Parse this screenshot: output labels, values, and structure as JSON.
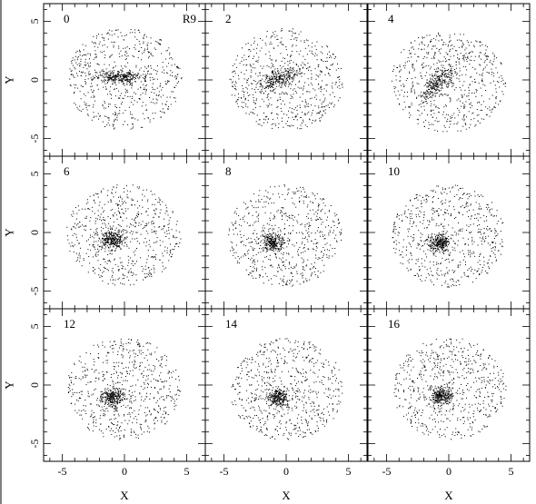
{
  "chart_data": [
    {
      "type": "scatter",
      "panel_label": "0",
      "annotation": "R9",
      "xlabel": "",
      "ylabel": "Y",
      "xlim": [
        -6.5,
        6.5
      ],
      "ylim": [
        -6.5,
        6.5
      ],
      "xticks": [
        -5,
        0,
        5
      ],
      "yticks": [
        -5,
        0,
        5
      ],
      "clump": [
        -0.8,
        0.3
      ],
      "note": "elongated bar along x"
    },
    {
      "type": "scatter",
      "panel_label": "2",
      "xlabel": "",
      "ylabel": "",
      "xlim": [
        -6.5,
        6.5
      ],
      "ylim": [
        -6.5,
        6.5
      ],
      "xticks": [
        -5,
        0,
        5
      ],
      "yticks": [
        -5,
        0,
        5
      ],
      "clump": [
        -0.8,
        0.2
      ]
    },
    {
      "type": "scatter",
      "panel_label": "4",
      "xlabel": "",
      "ylabel": "",
      "xlim": [
        -6.5,
        6.5
      ],
      "ylim": [
        -6.5,
        6.5
      ],
      "xticks": [
        -5,
        0,
        5
      ],
      "yticks": [
        -5,
        0,
        5
      ],
      "clump": [
        -0.9,
        -0.2
      ]
    },
    {
      "type": "scatter",
      "panel_label": "6",
      "xlabel": "",
      "ylabel": "Y",
      "xlim": [
        -6.5,
        6.5
      ],
      "ylim": [
        -6.5,
        6.5
      ],
      "xticks": [
        -5,
        0,
        5
      ],
      "yticks": [
        -5,
        0,
        5
      ],
      "clump": [
        -1.0,
        -0.5
      ]
    },
    {
      "type": "scatter",
      "panel_label": "8",
      "xlabel": "",
      "ylabel": "",
      "xlim": [
        -6.5,
        6.5
      ],
      "ylim": [
        -6.5,
        6.5
      ],
      "xticks": [
        -5,
        0,
        5
      ],
      "yticks": [
        -5,
        0,
        5
      ],
      "clump": [
        -1.1,
        -0.8
      ]
    },
    {
      "type": "scatter",
      "panel_label": "10",
      "xlabel": "",
      "ylabel": "",
      "xlim": [
        -6.5,
        6.5
      ],
      "ylim": [
        -6.5,
        6.5
      ],
      "xticks": [
        -5,
        0,
        5
      ],
      "yticks": [
        -5,
        0,
        5
      ],
      "clump": [
        -0.8,
        -0.9
      ]
    },
    {
      "type": "scatter",
      "panel_label": "12",
      "xlabel": "X",
      "ylabel": "Y",
      "xlim": [
        -6.5,
        6.5
      ],
      "ylim": [
        -6.5,
        6.5
      ],
      "xticks": [
        -5,
        0,
        5
      ],
      "yticks": [
        -5,
        0,
        5
      ],
      "clump": [
        -1.0,
        -1.0
      ]
    },
    {
      "type": "scatter",
      "panel_label": "14",
      "xlabel": "X",
      "ylabel": "",
      "xlim": [
        -6.5,
        6.5
      ],
      "ylim": [
        -6.5,
        6.5
      ],
      "xticks": [
        -5,
        0,
        5
      ],
      "yticks": [
        -5,
        0,
        5
      ],
      "clump": [
        -0.7,
        -1.0
      ]
    },
    {
      "type": "scatter",
      "panel_label": "16",
      "xlabel": "X",
      "ylabel": "",
      "xlim": [
        -6.5,
        6.5
      ],
      "ylim": [
        -6.5,
        6.5
      ],
      "xticks": [
        -5,
        0,
        5
      ],
      "yticks": [
        -5,
        0,
        5
      ],
      "clump": [
        -0.6,
        -0.9
      ]
    }
  ]
}
